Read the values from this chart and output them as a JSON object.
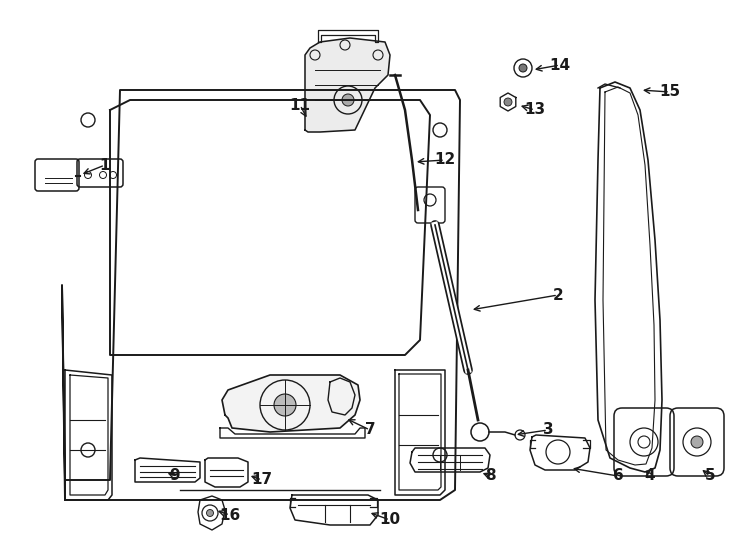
{
  "background_color": "#ffffff",
  "line_color": "#1a1a1a",
  "fig_width": 7.34,
  "fig_height": 5.4,
  "dpi": 100
}
